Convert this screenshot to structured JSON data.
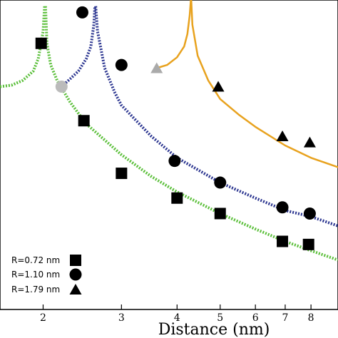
{
  "chart_data": {
    "type": "scatter",
    "xlabel": "Distance (nm)",
    "ylabel": "",
    "x_scale": "log",
    "xlim": [
      1.6,
      9.2
    ],
    "ylim": [
      0,
      1
    ],
    "x_ticks": [
      2,
      3,
      4,
      5,
      6,
      7,
      8
    ],
    "legend_placement": "bottom-left",
    "series": [
      {
        "name": "R=0.72 nm",
        "marker": "square",
        "color": "#000000",
        "points": [
          [
            1.98,
            0.86
          ],
          [
            2.47,
            0.61
          ],
          [
            3.0,
            0.44
          ],
          [
            4.0,
            0.36
          ],
          [
            5.0,
            0.31
          ],
          [
            6.9,
            0.22
          ],
          [
            7.9,
            0.21
          ]
        ]
      },
      {
        "name": "R=1.10 nm",
        "marker": "circle",
        "color": "#000000",
        "points": [
          [
            2.45,
            0.96
          ],
          [
            3.0,
            0.79
          ],
          [
            3.95,
            0.48
          ],
          [
            5.0,
            0.41
          ],
          [
            6.9,
            0.33
          ],
          [
            7.95,
            0.31
          ]
        ]
      },
      {
        "name": "R=1.79 nm",
        "marker": "triangle",
        "color": "#000000",
        "points": [
          [
            4.95,
            0.72
          ],
          [
            6.9,
            0.56
          ],
          [
            7.95,
            0.54
          ]
        ]
      }
    ],
    "grey_points": [
      {
        "marker": "circle",
        "color": "#bbbbbb",
        "x": 2.2,
        "y": 0.72
      },
      {
        "marker": "triangle",
        "color": "#aaaaaa",
        "x": 3.6,
        "y": 0.78
      }
    ],
    "fit_curves": [
      {
        "color": "#5bbf3a",
        "style": "dotted",
        "singularity": 2.02,
        "left": [
          [
            1.6,
            0.72
          ],
          [
            1.7,
            0.725
          ],
          [
            1.8,
            0.74
          ],
          [
            1.9,
            0.77
          ],
          [
            1.95,
            0.81
          ],
          [
            1.98,
            0.86
          ],
          [
            2.0,
            0.9
          ],
          [
            2.015,
            0.98
          ]
        ],
        "right": [
          [
            2.025,
            0.98
          ],
          [
            2.04,
            0.86
          ],
          [
            2.08,
            0.79
          ],
          [
            2.15,
            0.74
          ],
          [
            2.3,
            0.67
          ],
          [
            2.5,
            0.6
          ],
          [
            3.0,
            0.5
          ],
          [
            3.5,
            0.43
          ],
          [
            4.0,
            0.38
          ],
          [
            5.0,
            0.31
          ],
          [
            6.0,
            0.26
          ],
          [
            7.0,
            0.22
          ],
          [
            8.0,
            0.19
          ],
          [
            9.2,
            0.16
          ]
        ]
      },
      {
        "color": "#2b3590",
        "style": "dotted",
        "singularity": 2.62,
        "left": [
          [
            2.2,
            0.72
          ],
          [
            2.3,
            0.745
          ],
          [
            2.4,
            0.77
          ],
          [
            2.5,
            0.81
          ],
          [
            2.56,
            0.85
          ],
          [
            2.6,
            0.92
          ],
          [
            2.615,
            0.98
          ]
        ],
        "right": [
          [
            2.625,
            0.98
          ],
          [
            2.65,
            0.9
          ],
          [
            2.75,
            0.78
          ],
          [
            2.9,
            0.7
          ],
          [
            3.0,
            0.66
          ],
          [
            3.5,
            0.56
          ],
          [
            4.0,
            0.49
          ],
          [
            5.0,
            0.41
          ],
          [
            6.0,
            0.36
          ],
          [
            7.0,
            0.32
          ],
          [
            8.0,
            0.3
          ],
          [
            9.2,
            0.27
          ]
        ]
      },
      {
        "color": "#e8a21e",
        "style": "solid",
        "singularity": 4.3,
        "left": [
          [
            3.6,
            0.78
          ],
          [
            3.8,
            0.79
          ],
          [
            4.0,
            0.815
          ],
          [
            4.15,
            0.85
          ],
          [
            4.22,
            0.89
          ],
          [
            4.27,
            0.95
          ],
          [
            4.295,
            1.0
          ]
        ],
        "right": [
          [
            4.305,
            1.0
          ],
          [
            4.33,
            0.92
          ],
          [
            4.45,
            0.82
          ],
          [
            4.7,
            0.74
          ],
          [
            5.0,
            0.68
          ],
          [
            5.5,
            0.63
          ],
          [
            6.0,
            0.59
          ],
          [
            7.0,
            0.53
          ],
          [
            8.0,
            0.49
          ],
          [
            9.2,
            0.46
          ]
        ]
      }
    ]
  }
}
